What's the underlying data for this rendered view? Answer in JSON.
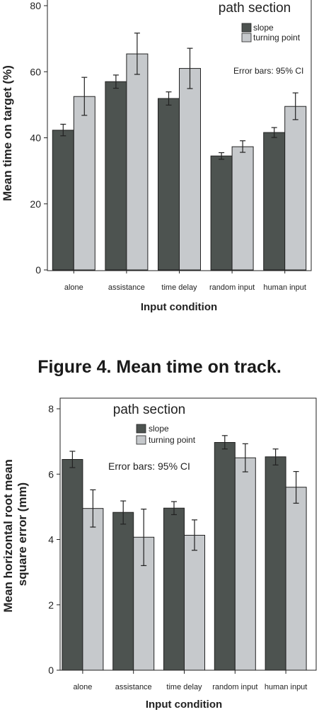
{
  "colors": {
    "slope": "#4d5350",
    "turning": "#c6c9cc",
    "axis": "#222222",
    "text": "#222222"
  },
  "figure1": {
    "caption": "Figure 4. Mean time on track.",
    "chart_data": {
      "type": "bar",
      "title": "",
      "legend_title": "path section",
      "legend_position": "top-right",
      "note": "Error bars: 95% CI",
      "xlabel": "Input condition",
      "ylabel": "Mean time on target (%)",
      "ylim": [
        0,
        80
      ],
      "yticks": [
        "0",
        "20",
        "40",
        "60",
        "80"
      ],
      "categories": [
        "alone",
        "assistance",
        "time delay",
        "random input",
        "human input"
      ],
      "series": [
        {
          "name": "slope",
          "values": [
            42.3,
            57.0,
            51.9,
            34.5,
            41.6
          ],
          "ci_low": [
            40.6,
            55.0,
            49.9,
            33.5,
            40.1
          ],
          "ci_high": [
            44.1,
            59.0,
            53.9,
            35.5,
            43.1
          ]
        },
        {
          "name": "turning point",
          "values": [
            52.5,
            65.4,
            61.0,
            37.3,
            49.5
          ],
          "ci_low": [
            46.8,
            59.2,
            54.9,
            35.6,
            45.5
          ],
          "ci_high": [
            58.3,
            71.7,
            67.1,
            39.1,
            53.6
          ]
        }
      ]
    }
  },
  "figure2": {
    "chart_data": {
      "type": "bar",
      "title": "",
      "legend_title": "path section",
      "legend_position": "top-center",
      "note": "Error bars: 95% CI",
      "xlabel": "Input condition",
      "ylabel_lines": [
        "Mean horizontal root mean",
        "square error (mm)"
      ],
      "ylim": [
        0,
        8
      ],
      "yticks": [
        "0",
        "2",
        "4",
        "6",
        "8"
      ],
      "categories": [
        "alone",
        "assistance",
        "time delay",
        "random input",
        "human input"
      ],
      "series": [
        {
          "name": "slope",
          "values": [
            6.45,
            4.83,
            4.96,
            6.97,
            6.53
          ],
          "ci_low": [
            6.2,
            4.47,
            4.76,
            6.77,
            6.28
          ],
          "ci_high": [
            6.7,
            5.18,
            5.16,
            7.18,
            6.77
          ]
        },
        {
          "name": "turning point",
          "values": [
            4.95,
            4.07,
            4.13,
            6.5,
            5.6
          ],
          "ci_low": [
            4.38,
            3.2,
            3.67,
            6.07,
            5.11
          ],
          "ci_high": [
            5.52,
            4.93,
            4.6,
            6.93,
            6.08
          ]
        }
      ]
    }
  }
}
